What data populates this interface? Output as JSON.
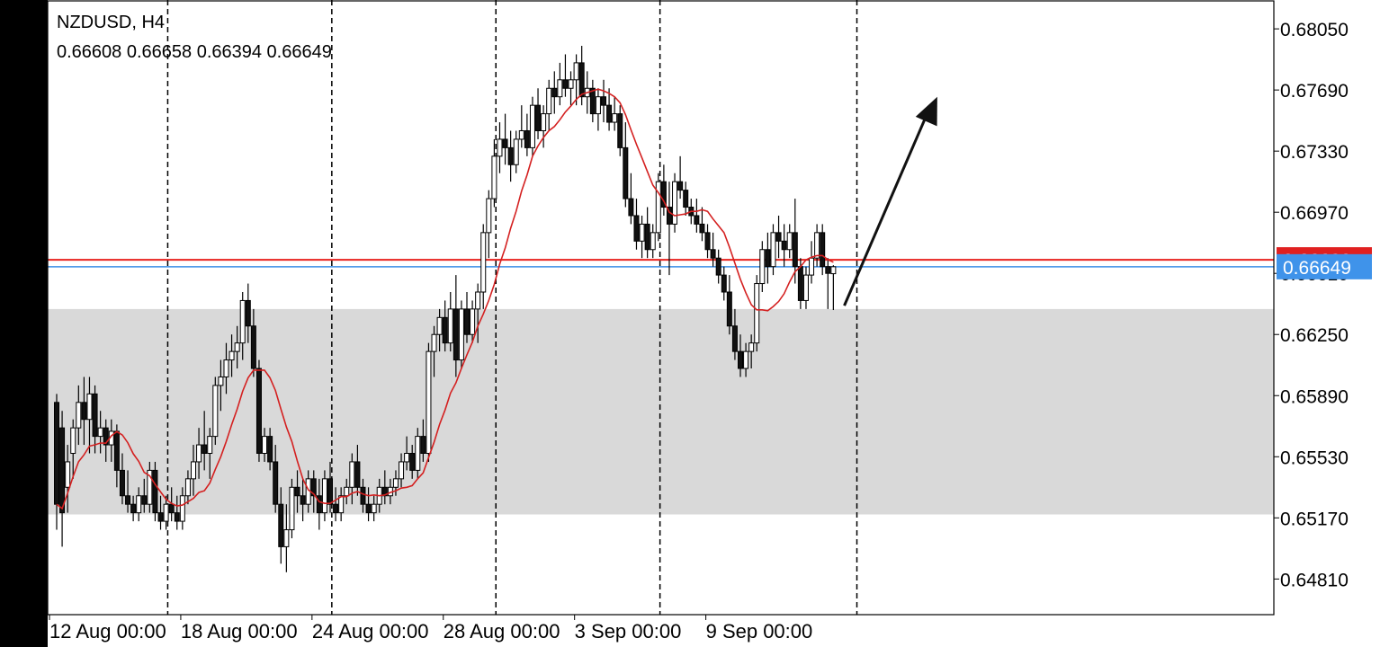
{
  "header": {
    "symbol": "NZDUSD, H4",
    "ohlc": "0.66608 0.66658 0.66394 0.66649"
  },
  "colors": {
    "bull": "#ffffff",
    "bear": "#111111",
    "ma": "#d42020",
    "red_line": "#e8231f",
    "blue_line": "#3b8ee6",
    "zone": "#d9d9d9",
    "badge_blue": "#3f93ea",
    "badge_red": "#e02020"
  },
  "chart_data": {
    "type": "candlestick",
    "instrument": "NZDUSD",
    "timeframe": "H4",
    "ylim": [
      0.646,
      0.6822
    ],
    "yticks": [
      "0.68050",
      "0.67690",
      "0.67330",
      "0.66970",
      "0.66610",
      "0.66250",
      "0.65890",
      "0.65530",
      "0.65170",
      "0.64810"
    ],
    "xticks": [
      {
        "label": "12 Aug 00:00",
        "index": 0
      },
      {
        "label": "18 Aug 00:00",
        "index": 24
      },
      {
        "label": "24 Aug 00:00",
        "index": 48
      },
      {
        "label": "28 Aug 00:00",
        "index": 72
      },
      {
        "label": "3 Sep 00:00",
        "index": 96
      },
      {
        "label": "9 Sep 00:00",
        "index": 120
      }
    ],
    "period_separators": [
      18,
      48,
      78,
      108,
      144
    ],
    "current_price": {
      "value": 0.66649,
      "label": "0.66649",
      "line_color": "blue"
    },
    "red_line": {
      "value": 0.6669,
      "label": "0.66690"
    },
    "support_zone": {
      "low": 0.6519,
      "high": 0.664
    },
    "moving_average_color": "red",
    "arrow": {
      "from": [
        144,
        0.6642
      ],
      "to": [
        161,
        0.6765
      ]
    },
    "ohlc": [
      [
        0.6585,
        0.659,
        0.651,
        0.6525
      ],
      [
        0.657,
        0.658,
        0.65,
        0.652
      ],
      [
        0.6535,
        0.656,
        0.652,
        0.655
      ],
      [
        0.6555,
        0.6575,
        0.654,
        0.657
      ],
      [
        0.657,
        0.6595,
        0.656,
        0.6585
      ],
      [
        0.6585,
        0.66,
        0.656,
        0.6575
      ],
      [
        0.6575,
        0.66,
        0.6555,
        0.659
      ],
      [
        0.659,
        0.6595,
        0.6555,
        0.6565
      ],
      [
        0.6565,
        0.658,
        0.6555,
        0.657
      ],
      [
        0.657,
        0.6575,
        0.655,
        0.656
      ],
      [
        0.656,
        0.6575,
        0.655,
        0.6568
      ],
      [
        0.6568,
        0.6572,
        0.6535,
        0.6545
      ],
      [
        0.6545,
        0.6555,
        0.6525,
        0.653
      ],
      [
        0.653,
        0.6545,
        0.652,
        0.6525
      ],
      [
        0.6525,
        0.653,
        0.6515,
        0.652
      ],
      [
        0.652,
        0.6535,
        0.6515,
        0.653
      ],
      [
        0.653,
        0.654,
        0.652,
        0.6525
      ],
      [
        0.6525,
        0.655,
        0.652,
        0.6545
      ],
      [
        0.6545,
        0.655,
        0.6515,
        0.652
      ],
      [
        0.652,
        0.653,
        0.651,
        0.6515
      ],
      [
        0.6515,
        0.653,
        0.651,
        0.6525
      ],
      [
        0.6525,
        0.6535,
        0.6515,
        0.652
      ],
      [
        0.652,
        0.653,
        0.651,
        0.6515
      ],
      [
        0.6515,
        0.6535,
        0.651,
        0.653
      ],
      [
        0.653,
        0.6545,
        0.6525,
        0.654
      ],
      [
        0.654,
        0.656,
        0.653,
        0.655
      ],
      [
        0.655,
        0.657,
        0.654,
        0.656
      ],
      [
        0.656,
        0.658,
        0.6545,
        0.6555
      ],
      [
        0.6555,
        0.657,
        0.654,
        0.6565
      ],
      [
        0.6565,
        0.66,
        0.656,
        0.6595
      ],
      [
        0.6595,
        0.661,
        0.658,
        0.66
      ],
      [
        0.66,
        0.662,
        0.659,
        0.661
      ],
      [
        0.661,
        0.6625,
        0.66,
        0.6615
      ],
      [
        0.6615,
        0.663,
        0.6605,
        0.662
      ],
      [
        0.662,
        0.665,
        0.661,
        0.6645
      ],
      [
        0.6645,
        0.6655,
        0.662,
        0.663
      ],
      [
        0.663,
        0.664,
        0.66,
        0.6605
      ],
      [
        0.6605,
        0.661,
        0.655,
        0.6555
      ],
      [
        0.6555,
        0.657,
        0.655,
        0.6565
      ],
      [
        0.6565,
        0.657,
        0.6545,
        0.655
      ],
      [
        0.655,
        0.656,
        0.652,
        0.6525
      ],
      [
        0.6525,
        0.6535,
        0.649,
        0.65
      ],
      [
        0.65,
        0.6525,
        0.6485,
        0.651
      ],
      [
        0.651,
        0.654,
        0.6505,
        0.6535
      ],
      [
        0.6535,
        0.6545,
        0.652,
        0.653
      ],
      [
        0.653,
        0.654,
        0.6515,
        0.6525
      ],
      [
        0.6525,
        0.6545,
        0.652,
        0.654
      ],
      [
        0.654,
        0.6545,
        0.652,
        0.653
      ],
      [
        0.653,
        0.654,
        0.651,
        0.652
      ],
      [
        0.652,
        0.6545,
        0.6515,
        0.654
      ],
      [
        0.654,
        0.655,
        0.652,
        0.6525
      ],
      [
        0.6525,
        0.6535,
        0.6515,
        0.652
      ],
      [
        0.652,
        0.6535,
        0.6515,
        0.653
      ],
      [
        0.653,
        0.654,
        0.6525,
        0.6535
      ],
      [
        0.6535,
        0.6555,
        0.6525,
        0.655
      ],
      [
        0.655,
        0.656,
        0.653,
        0.6535
      ],
      [
        0.6535,
        0.654,
        0.652,
        0.6525
      ],
      [
        0.6525,
        0.6535,
        0.6515,
        0.652
      ],
      [
        0.652,
        0.653,
        0.6515,
        0.6525
      ],
      [
        0.6525,
        0.654,
        0.652,
        0.6535
      ],
      [
        0.6535,
        0.6545,
        0.6525,
        0.653
      ],
      [
        0.653,
        0.654,
        0.6525,
        0.6535
      ],
      [
        0.6535,
        0.6545,
        0.653,
        0.654
      ],
      [
        0.654,
        0.6555,
        0.6535,
        0.655
      ],
      [
        0.655,
        0.6565,
        0.6545,
        0.6555
      ],
      [
        0.6555,
        0.656,
        0.654,
        0.6545
      ],
      [
        0.6545,
        0.657,
        0.654,
        0.6565
      ],
      [
        0.6565,
        0.6575,
        0.655,
        0.6555
      ],
      [
        0.6555,
        0.662,
        0.655,
        0.6615
      ],
      [
        0.6615,
        0.663,
        0.66,
        0.6625
      ],
      [
        0.6625,
        0.664,
        0.6615,
        0.6635
      ],
      [
        0.6635,
        0.6645,
        0.6615,
        0.662
      ],
      [
        0.662,
        0.665,
        0.6615,
        0.664
      ],
      [
        0.664,
        0.666,
        0.66,
        0.661
      ],
      [
        0.661,
        0.6645,
        0.6605,
        0.664
      ],
      [
        0.664,
        0.665,
        0.662,
        0.6625
      ],
      [
        0.6625,
        0.6645,
        0.662,
        0.664
      ],
      [
        0.664,
        0.6655,
        0.662,
        0.665
      ],
      [
        0.665,
        0.669,
        0.664,
        0.6685
      ],
      [
        0.6685,
        0.671,
        0.667,
        0.6705
      ],
      [
        0.6705,
        0.674,
        0.67,
        0.673
      ],
      [
        0.673,
        0.675,
        0.672,
        0.674
      ],
      [
        0.674,
        0.6755,
        0.6725,
        0.6735
      ],
      [
        0.6735,
        0.6745,
        0.6715,
        0.6725
      ],
      [
        0.6725,
        0.6745,
        0.672,
        0.674
      ],
      [
        0.674,
        0.676,
        0.6735,
        0.6745
      ],
      [
        0.6745,
        0.6755,
        0.673,
        0.6735
      ],
      [
        0.6735,
        0.6765,
        0.673,
        0.676
      ],
      [
        0.676,
        0.677,
        0.674,
        0.6745
      ],
      [
        0.6745,
        0.676,
        0.6735,
        0.6755
      ],
      [
        0.6755,
        0.6775,
        0.6745,
        0.677
      ],
      [
        0.677,
        0.678,
        0.6755,
        0.6765
      ],
      [
        0.6765,
        0.6785,
        0.676,
        0.6775
      ],
      [
        0.6775,
        0.679,
        0.6765,
        0.677
      ],
      [
        0.677,
        0.678,
        0.676,
        0.6775
      ],
      [
        0.6775,
        0.679,
        0.676,
        0.6785
      ],
      [
        0.6785,
        0.6795,
        0.676,
        0.6765
      ],
      [
        0.6765,
        0.678,
        0.6755,
        0.677
      ],
      [
        0.677,
        0.6775,
        0.675,
        0.6755
      ],
      [
        0.6755,
        0.677,
        0.6745,
        0.6765
      ],
      [
        0.6765,
        0.6775,
        0.675,
        0.676
      ],
      [
        0.676,
        0.677,
        0.6745,
        0.675
      ],
      [
        0.675,
        0.6765,
        0.6745,
        0.6755
      ],
      [
        0.6755,
        0.676,
        0.673,
        0.6735
      ],
      [
        0.6735,
        0.675,
        0.67,
        0.6705
      ],
      [
        0.6705,
        0.672,
        0.669,
        0.6695
      ],
      [
        0.6695,
        0.6705,
        0.6675,
        0.668
      ],
      [
        0.668,
        0.6695,
        0.667,
        0.669
      ],
      [
        0.669,
        0.67,
        0.667,
        0.6675
      ],
      [
        0.6675,
        0.669,
        0.667,
        0.6685
      ],
      [
        0.6685,
        0.672,
        0.668,
        0.6715
      ],
      [
        0.6715,
        0.6725,
        0.6695,
        0.67
      ],
      [
        0.67,
        0.6715,
        0.666,
        0.669
      ],
      [
        0.669,
        0.672,
        0.6685,
        0.6715
      ],
      [
        0.6715,
        0.673,
        0.6705,
        0.671
      ],
      [
        0.671,
        0.6715,
        0.6695,
        0.67
      ],
      [
        0.67,
        0.6705,
        0.669,
        0.6695
      ],
      [
        0.6695,
        0.6705,
        0.6685,
        0.669
      ],
      [
        0.669,
        0.67,
        0.668,
        0.6685
      ],
      [
        0.6685,
        0.669,
        0.667,
        0.6675
      ],
      [
        0.6675,
        0.6685,
        0.6665,
        0.667
      ],
      [
        0.667,
        0.6675,
        0.6655,
        0.666
      ],
      [
        0.666,
        0.6665,
        0.6645,
        0.665
      ],
      [
        0.665,
        0.666,
        0.6625,
        0.663
      ],
      [
        0.663,
        0.664,
        0.661,
        0.6615
      ],
      [
        0.6615,
        0.6625,
        0.66,
        0.6605
      ],
      [
        0.6605,
        0.662,
        0.66,
        0.6615
      ],
      [
        0.6615,
        0.6625,
        0.6605,
        0.662
      ],
      [
        0.662,
        0.666,
        0.6615,
        0.6655
      ],
      [
        0.6655,
        0.668,
        0.665,
        0.6675
      ],
      [
        0.6675,
        0.6685,
        0.6655,
        0.6665
      ],
      [
        0.6665,
        0.669,
        0.666,
        0.6685
      ],
      [
        0.6685,
        0.6695,
        0.667,
        0.668
      ],
      [
        0.668,
        0.669,
        0.6665,
        0.6675
      ],
      [
        0.6675,
        0.669,
        0.667,
        0.6685
      ],
      [
        0.6685,
        0.6705,
        0.6655,
        0.6665
      ],
      [
        0.6665,
        0.667,
        0.664,
        0.6645
      ],
      [
        0.6645,
        0.6665,
        0.664,
        0.666
      ],
      [
        0.666,
        0.668,
        0.6655,
        0.667
      ],
      [
        0.667,
        0.669,
        0.6665,
        0.6685
      ],
      [
        0.6685,
        0.669,
        0.666,
        0.6665
      ],
      [
        0.6665,
        0.667,
        0.664,
        0.6661
      ],
      [
        0.66608,
        0.66658,
        0.66394,
        0.66649
      ]
    ]
  }
}
